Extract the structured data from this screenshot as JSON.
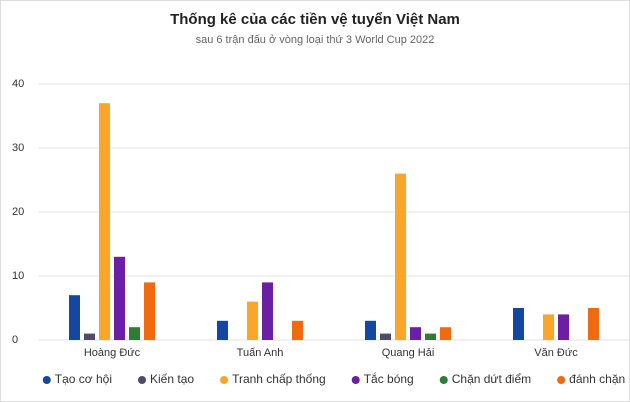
{
  "chart_data": {
    "type": "bar",
    "title": "Thống kê của các tiền vệ tuyển Việt Nam",
    "subtitle": "sau 6 trận đấu ở vòng loại thứ 3 World Cup 2022",
    "categories": [
      "Hoàng Đức",
      "Tuấn Anh",
      "Quang Hải",
      "Văn Đức"
    ],
    "series": [
      {
        "name": "Tạo cơ hội",
        "color": "#1447a0",
        "values": [
          7,
          3,
          3,
          5
        ]
      },
      {
        "name": "Kiến tạo",
        "color": "#4f4b6d",
        "values": [
          1,
          0,
          1,
          0
        ]
      },
      {
        "name": "Tranh chấp thống",
        "color": "#f9a62a",
        "values": [
          37,
          6,
          26,
          4
        ]
      },
      {
        "name": "Tắc bóng",
        "color": "#6b1fa3",
        "values": [
          13,
          9,
          2,
          4
        ]
      },
      {
        "name": "Chặn dứt điểm",
        "color": "#2e7d32",
        "values": [
          2,
          0,
          1,
          0
        ]
      },
      {
        "name": "đánh chặn",
        "color": "#f26a10",
        "values": [
          9,
          3,
          2,
          5
        ]
      }
    ],
    "ylim": [
      0,
      40
    ],
    "yticks": [
      0,
      10,
      20,
      30,
      40
    ],
    "grid": true
  }
}
